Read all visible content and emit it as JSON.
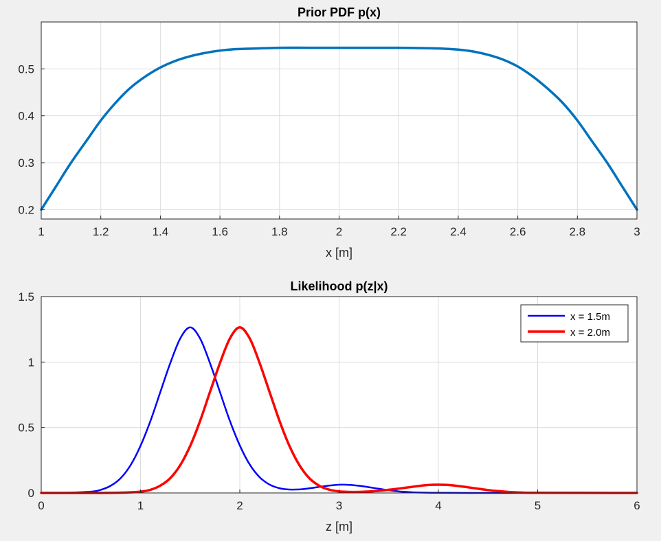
{
  "chart_data": [
    {
      "type": "line",
      "title": "Prior PDF p(x)",
      "xlabel": "x [m]",
      "ylabel": "",
      "xlim": [
        1,
        3
      ],
      "ylim": [
        0.18,
        0.6
      ],
      "xticks": [
        1,
        1.2,
        1.4,
        1.6,
        1.8,
        2,
        2.2,
        2.4,
        2.6,
        2.8,
        3
      ],
      "xtick_labels": [
        "1",
        "1.2",
        "1.4",
        "1.6",
        "1.8",
        "2",
        "2.2",
        "2.4",
        "2.6",
        "2.8",
        "3"
      ],
      "yticks": [
        0.2,
        0.3,
        0.4,
        0.5
      ],
      "ytick_labels": [
        "0.2",
        "0.3",
        "0.4",
        "0.5"
      ],
      "grid": true,
      "series": [
        {
          "color": "#0072BD",
          "line_width": 3.5,
          "x": [
            1.0,
            1.05,
            1.1,
            1.15,
            1.2,
            1.25,
            1.3,
            1.35,
            1.4,
            1.45,
            1.5,
            1.55,
            1.6,
            1.65,
            1.7,
            1.8,
            1.9,
            2.0,
            2.1,
            2.2,
            2.3,
            2.35,
            2.4,
            2.45,
            2.5,
            2.55,
            2.6,
            2.65,
            2.7,
            2.75,
            2.8,
            2.85,
            2.9,
            2.95,
            3.0
          ],
          "y": [
            0.2,
            0.25,
            0.3,
            0.345,
            0.39,
            0.428,
            0.46,
            0.484,
            0.503,
            0.517,
            0.527,
            0.534,
            0.539,
            0.542,
            0.543,
            0.545,
            0.545,
            0.545,
            0.545,
            0.545,
            0.544,
            0.543,
            0.541,
            0.537,
            0.53,
            0.52,
            0.505,
            0.484,
            0.458,
            0.428,
            0.39,
            0.345,
            0.3,
            0.25,
            0.2
          ]
        }
      ]
    },
    {
      "type": "line",
      "title": "Likelihood p(z|x)",
      "xlabel": "z [m]",
      "ylabel": "",
      "xlim": [
        0,
        6
      ],
      "ylim": [
        0,
        1.5
      ],
      "xticks": [
        0,
        1,
        2,
        3,
        4,
        5,
        6
      ],
      "xtick_labels": [
        "0",
        "1",
        "2",
        "3",
        "4",
        "5",
        "6"
      ],
      "yticks": [
        0,
        0.5,
        1,
        1.5
      ],
      "ytick_labels": [
        "0",
        "0.5",
        "1",
        "1.5"
      ],
      "grid": true,
      "legend_position": "top-right",
      "series": [
        {
          "name": "x = 1.5m",
          "color": "#0000ff",
          "line_width": 2.5,
          "x": [
            0.0,
            0.25,
            0.5,
            0.6,
            0.7,
            0.8,
            0.9,
            1.0,
            1.1,
            1.2,
            1.3,
            1.4,
            1.5,
            1.6,
            1.7,
            1.8,
            1.9,
            2.0,
            2.1,
            2.2,
            2.3,
            2.4,
            2.5,
            2.6,
            2.7,
            2.8,
            2.9,
            3.0,
            3.1,
            3.2,
            3.3,
            3.4,
            3.5,
            3.6,
            3.7,
            3.8,
            4.0,
            4.5,
            5.0,
            6.0
          ],
          "y": [
            0.0,
            0.001,
            0.01,
            0.024,
            0.055,
            0.113,
            0.212,
            0.36,
            0.55,
            0.772,
            0.992,
            1.18,
            1.265,
            1.18,
            0.992,
            0.771,
            0.55,
            0.363,
            0.217,
            0.12,
            0.064,
            0.036,
            0.026,
            0.027,
            0.035,
            0.046,
            0.056,
            0.063,
            0.062,
            0.055,
            0.044,
            0.032,
            0.021,
            0.012,
            0.007,
            0.003,
            0.001,
            0.0,
            0.0,
            0.0
          ]
        },
        {
          "name": "x = 2.0m",
          "color": "#ff0000",
          "line_width": 3.5,
          "x": [
            0.0,
            0.5,
            0.8,
            1.0,
            1.1,
            1.2,
            1.3,
            1.4,
            1.5,
            1.6,
            1.7,
            1.8,
            1.9,
            2.0,
            2.1,
            2.2,
            2.3,
            2.4,
            2.5,
            2.6,
            2.7,
            2.8,
            2.9,
            3.0,
            3.1,
            3.2,
            3.3,
            3.4,
            3.5,
            3.6,
            3.7,
            3.8,
            3.9,
            4.0,
            4.1,
            4.2,
            4.3,
            4.4,
            4.5,
            4.6,
            4.7,
            4.8,
            5.0,
            6.0
          ],
          "y": [
            0.0,
            0.0,
            0.002,
            0.01,
            0.024,
            0.056,
            0.113,
            0.212,
            0.359,
            0.55,
            0.772,
            0.992,
            1.18,
            1.265,
            1.18,
            0.992,
            0.771,
            0.55,
            0.359,
            0.213,
            0.113,
            0.055,
            0.025,
            0.012,
            0.008,
            0.008,
            0.011,
            0.016,
            0.024,
            0.033,
            0.043,
            0.053,
            0.061,
            0.063,
            0.061,
            0.053,
            0.043,
            0.032,
            0.022,
            0.014,
            0.008,
            0.004,
            0.001,
            0.0
          ]
        }
      ]
    }
  ]
}
